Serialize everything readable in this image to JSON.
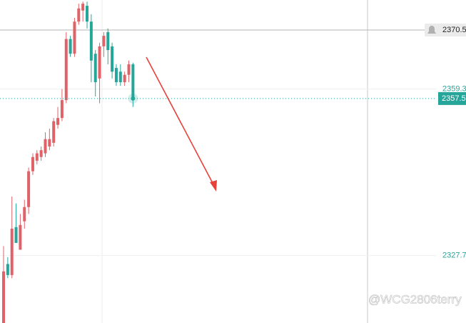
{
  "chart_data": {
    "type": "candlestick",
    "open": [
      2314.9,
      2326.1,
      2324.0,
      2333.1,
      2328.8,
      2334.2,
      2336.9,
      2343.7,
      2345.7,
      2346.4,
      2347.1,
      2348.4,
      2349.1,
      2352.5,
      2353.8,
      2357.2,
      2368.8,
      2366.0,
      2372.1,
      2374.2,
      2375.1,
      2372.1,
      2366.0,
      2361.3,
      2367.4,
      2370.1,
      2367.4,
      2363.3,
      2362.6,
      2360.6,
      2362.0,
      2364.0
    ],
    "high": [
      2329.5,
      2327.4,
      2338.9,
      2337.6,
      2335.6,
      2338.3,
      2344.4,
      2347.1,
      2347.7,
      2348.4,
      2351.1,
      2351.8,
      2353.8,
      2355.9,
      2359.3,
      2370.1,
      2369.4,
      2372.8,
      2375.5,
      2375.9,
      2375.9,
      2373.5,
      2366.7,
      2368.1,
      2370.1,
      2370.8,
      2368.1,
      2364.0,
      2364.0,
      2362.6,
      2364.7,
      2364.3
    ],
    "low": [
      2314.9,
      2323.4,
      2323.4,
      2330.1,
      2328.8,
      2332.8,
      2335.6,
      2343.0,
      2345.0,
      2345.7,
      2346.4,
      2347.7,
      2348.4,
      2351.8,
      2353.2,
      2356.6,
      2365.4,
      2365.4,
      2371.5,
      2372.1,
      2370.8,
      2360.6,
      2357.9,
      2356.6,
      2365.4,
      2364.0,
      2361.3,
      2359.9,
      2359.9,
      2359.9,
      2360.6,
      2355.9
    ],
    "close": [
      2324.7,
      2324.0,
      2332.8,
      2330.1,
      2333.5,
      2336.9,
      2343.7,
      2346.4,
      2347.1,
      2347.7,
      2349.8,
      2349.8,
      2353.2,
      2353.8,
      2357.2,
      2368.8,
      2366.0,
      2372.1,
      2374.6,
      2375.5,
      2372.1,
      2364.7,
      2360.6,
      2367.4,
      2369.4,
      2366.7,
      2362.6,
      2360.6,
      2360.6,
      2362.0,
      2364.0,
      2357.5
    ],
    "up_color": "#e06269",
    "down_color": "#26a69a",
    "ylim": [
      2314.9,
      2376.2
    ],
    "yticks": [
      2359.3,
      2327.7
    ],
    "alert_level": 2370.5,
    "last_price": 2357.5,
    "grid": true,
    "watermark": "@WCG2806terry"
  }
}
